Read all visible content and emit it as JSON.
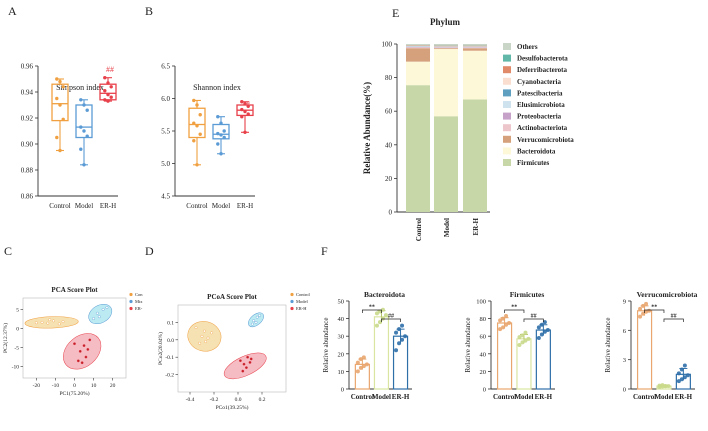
{
  "colors": {
    "control": "#F0A040",
    "model": "#5B9BD5",
    "erh": "#E8404A",
    "pca_control": "#F3D79A",
    "pca_model": "#A6E3EE",
    "pca_erh": "#F2A5B0",
    "bar_control": "#E9A66F",
    "bar_model": "#D9E5A0",
    "bar_erh": "#2F6FA8",
    "axis": "#333333"
  },
  "chart_data": [
    {
      "id": "A",
      "panel_label": "A",
      "type": "box",
      "title": "Simpson index",
      "categories": [
        "Control",
        "Model",
        "ER-H"
      ],
      "ylim": [
        0.86,
        0.96
      ],
      "yticks": [
        "0.96",
        "0.94",
        "0.92",
        "0.90",
        "0.88",
        "0.86"
      ],
      "yticks_values": [
        0.96,
        0.94,
        0.92,
        0.9,
        0.88,
        0.86
      ],
      "boxes": [
        {
          "name": "Control",
          "min": 0.895,
          "q1": 0.918,
          "median": 0.931,
          "q3": 0.946,
          "max": 0.95
        },
        {
          "name": "Model",
          "min": 0.884,
          "q1": 0.905,
          "median": 0.913,
          "q3": 0.93,
          "max": 0.934
        },
        {
          "name": "ER-H",
          "min": 0.933,
          "q1": 0.934,
          "median": 0.939,
          "q3": 0.946,
          "max": 0.951
        }
      ],
      "points": [
        [
          0.95,
          0.948,
          0.944,
          0.935,
          0.93,
          0.919,
          0.905,
          0.895
        ],
        [
          0.934,
          0.93,
          0.926,
          0.913,
          0.91,
          0.906,
          0.896,
          0.884
        ],
        [
          0.951,
          0.947,
          0.944,
          0.941,
          0.938,
          0.936,
          0.934,
          0.933
        ]
      ],
      "annotation": "##"
    },
    {
      "id": "B",
      "panel_label": "B",
      "type": "box",
      "title": "Shannon  index",
      "categories": [
        "Control",
        "Model",
        "ER-H"
      ],
      "ylim": [
        4.5,
        6.5
      ],
      "yticks": [
        "6.5",
        "6.0",
        "5.5",
        "5.0",
        "4.5"
      ],
      "yticks_values": [
        6.5,
        6.0,
        5.5,
        5.0,
        4.5
      ],
      "boxes": [
        {
          "name": "Control",
          "min": 4.98,
          "q1": 5.4,
          "median": 5.6,
          "q3": 5.85,
          "max": 5.97
        },
        {
          "name": "Model",
          "min": 5.15,
          "q1": 5.38,
          "median": 5.45,
          "q3": 5.6,
          "max": 5.72
        },
        {
          "name": "ER-H",
          "min": 5.48,
          "q1": 5.74,
          "median": 5.82,
          "q3": 5.9,
          "max": 5.95
        }
      ],
      "points": [
        [
          5.97,
          5.9,
          5.75,
          5.62,
          5.58,
          5.45,
          5.35,
          4.98
        ],
        [
          5.72,
          5.62,
          5.5,
          5.46,
          5.44,
          5.4,
          5.3,
          5.15
        ],
        [
          5.95,
          5.92,
          5.88,
          5.83,
          5.8,
          5.76,
          5.72,
          5.48
        ]
      ],
      "annotation": "#"
    },
    {
      "id": "C",
      "panel_label": "C",
      "type": "scatter",
      "title": "PCA Score Plot",
      "xlabel": "PC1(75.20%)",
      "ylabel": "PC2(12.37%)",
      "xlim": [
        -27,
        27
      ],
      "ylim": [
        -13,
        8
      ],
      "xticks": [
        "-20",
        "-10",
        "0",
        "10",
        "20"
      ],
      "xticks_values": [
        -20,
        -10,
        0,
        10,
        20
      ],
      "yticks": [
        "5",
        "0",
        "-5",
        "-10"
      ],
      "yticks_values": [
        5,
        0,
        -5,
        -10
      ],
      "legend": [
        "Con",
        "Mix",
        "ER-"
      ],
      "groups": [
        {
          "name": "Con",
          "points": [
            [
              -20,
              1.5
            ],
            [
              -17,
              1.6
            ],
            [
              -14,
              1.4
            ],
            [
              -11,
              2.0
            ],
            [
              -8,
              1.2
            ],
            [
              -6,
              1.8
            ],
            [
              -13,
              2.3
            ]
          ],
          "ellipse": {
            "cx": -12,
            "cy": 1.6,
            "rx": 14,
            "ry": 1.5,
            "angle": 2
          }
        },
        {
          "name": "Mix",
          "points": [
            [
              12,
              4.0
            ],
            [
              15,
              5.0
            ],
            [
              13,
              3.1
            ],
            [
              10,
              2.6
            ],
            [
              17,
              5.5
            ]
          ],
          "ellipse": {
            "cx": 13.5,
            "cy": 3.8,
            "rx": 6.5,
            "ry": 2.3,
            "angle": 30
          }
        },
        {
          "name": "ER-",
          "points": [
            [
              0,
              -4.0
            ],
            [
              3,
              -6.0
            ],
            [
              5,
              -4.5
            ],
            [
              7,
              -5.5
            ],
            [
              6,
              -7.5
            ],
            [
              2,
              -8.5
            ],
            [
              8,
              -3.0
            ],
            [
              4,
              -9.0
            ]
          ],
          "ellipse": {
            "cx": 4,
            "cy": -6,
            "rx": 11,
            "ry": 4,
            "angle": 40
          }
        }
      ]
    },
    {
      "id": "D",
      "panel_label": "D",
      "type": "scatter",
      "title": "PCoA Score Plot",
      "xlabel": "PCo1(39.25%)",
      "ylabel": "PCo2(20.04%)",
      "xlim": [
        -0.5,
        0.4
      ],
      "ylim": [
        -0.3,
        0.2
      ],
      "xticks": [
        "-0.4",
        "-0.2",
        "0.0",
        "0.2"
      ],
      "xticks_values": [
        -0.4,
        -0.2,
        0.0,
        0.2
      ],
      "yticks": [
        "0.1",
        "0.0",
        "-0.1",
        "-0.2"
      ],
      "yticks_values": [
        0.1,
        0.0,
        -0.1,
        -0.2
      ],
      "legend": [
        "Control",
        "Model",
        "ER-H"
      ],
      "groups": [
        {
          "name": "Control",
          "points": [
            [
              -0.35,
              0.07
            ],
            [
              -0.3,
              0.02
            ],
            [
              -0.28,
              0.05
            ],
            [
              -0.25,
              0.01
            ],
            [
              -0.32,
              -0.02
            ],
            [
              -0.22,
              0.04
            ],
            [
              -0.27,
              -0.01
            ]
          ],
          "ellipse": {
            "cx": -0.28,
            "cy": 0.02,
            "rx": 0.14,
            "ry": 0.085,
            "angle": -15
          }
        },
        {
          "name": "Model",
          "points": [
            [
              0.13,
              0.11
            ],
            [
              0.16,
              0.13
            ],
            [
              0.12,
              0.09
            ],
            [
              0.18,
              0.14
            ],
            [
              0.15,
              0.1
            ]
          ],
          "ellipse": {
            "cx": 0.15,
            "cy": 0.115,
            "rx": 0.075,
            "ry": 0.03,
            "angle": 40
          }
        },
        {
          "name": "ER-H",
          "points": [
            [
              0.02,
              -0.12
            ],
            [
              0.05,
              -0.14
            ],
            [
              0.08,
              -0.1
            ],
            [
              0.1,
              -0.13
            ],
            [
              0.04,
              -0.18
            ],
            [
              0.07,
              -0.16
            ],
            [
              0.11,
              -0.11
            ]
          ],
          "ellipse": {
            "cx": 0.06,
            "cy": -0.15,
            "rx": 0.19,
            "ry": 0.055,
            "angle": 25
          }
        }
      ]
    },
    {
      "id": "E",
      "panel_label": "E",
      "type": "stacked_bar",
      "title": "Phylum",
      "ylabel": "Relative Abundance(%)",
      "ylim": [
        0,
        100
      ],
      "yticks": [
        "100",
        "80",
        "60",
        "40",
        "20",
        "0"
      ],
      "yticks_values": [
        100,
        80,
        60,
        40,
        20,
        0
      ],
      "categories": [
        "Control",
        "Model",
        "ER-H"
      ],
      "legend": [
        "Others",
        "Desulfobacterota",
        "Deferribacterota",
        "Cyanobacteria",
        "Patescibacteria",
        "Elusimicrobiota",
        "Proteobacteria",
        "Actinobacteriota",
        "Verrucomicrobiota",
        "Bacteroidota",
        "Firmicutes"
      ],
      "series": [
        {
          "name": "Firmicutes",
          "color": "#C8D7A8",
          "values": [
            75.5,
            57.0,
            67.0
          ]
        },
        {
          "name": "Bacteroidota",
          "color": "#FDF8D8",
          "values": [
            14.0,
            40.0,
            29.0
          ]
        },
        {
          "name": "Verrucomicrobiota",
          "color": "#D4A17C",
          "values": [
            8.0,
            0.5,
            1.5
          ]
        },
        {
          "name": "Actinobacteriota",
          "color": "#EDC6CB",
          "values": [
            0.5,
            0.3,
            0.3
          ]
        },
        {
          "name": "Proteobacteria",
          "color": "#C7A2C8",
          "values": [
            0.3,
            0.3,
            0.3
          ]
        },
        {
          "name": "Elusimicrobiota",
          "color": "#CFE3EE",
          "values": [
            0.2,
            0.1,
            0.1
          ]
        },
        {
          "name": "Patescibacteria",
          "color": "#5F9FC0",
          "values": [
            0.2,
            0.2,
            0.2
          ]
        },
        {
          "name": "Cyanobacteria",
          "color": "#FADFD0",
          "values": [
            0.3,
            0.3,
            0.3
          ]
        },
        {
          "name": "Deferribacterota",
          "color": "#E08A6A",
          "values": [
            0.3,
            0.3,
            0.3
          ]
        },
        {
          "name": "Desulfobacterota",
          "color": "#62B8A8",
          "values": [
            0.2,
            0.2,
            0.2
          ]
        },
        {
          "name": "Others",
          "color": "#C9D5C6",
          "values": [
            0.5,
            0.8,
            0.8
          ]
        }
      ]
    },
    {
      "id": "F1",
      "panel_label": "F",
      "type": "bar",
      "title": "Bacteroidota",
      "ylabel": "Relative abundance",
      "ylim": [
        0,
        50
      ],
      "yticks": [
        "50",
        "40",
        "30",
        "20",
        "10",
        "0"
      ],
      "yticks_values": [
        50,
        40,
        30,
        20,
        10,
        0
      ],
      "categories": [
        "Control",
        "Model",
        "ER-H"
      ],
      "values": [
        14,
        41,
        30
      ],
      "errors": [
        3,
        3.5,
        4
      ],
      "points": [
        [
          10,
          12,
          13,
          14,
          15,
          17,
          18
        ],
        [
          36,
          38,
          40,
          42,
          43,
          44,
          45
        ],
        [
          22,
          26,
          28,
          30,
          32,
          34,
          36
        ]
      ],
      "sig": [
        {
          "from": 0,
          "to": 1,
          "label": "**"
        },
        {
          "from": 1,
          "to": 2,
          "label": "##"
        }
      ]
    },
    {
      "id": "F2",
      "panel_label": "",
      "type": "bar",
      "title": "Firmicutes",
      "ylabel": "Relative abundance",
      "ylim": [
        0,
        100
      ],
      "yticks": [
        "100",
        "80",
        "60",
        "40",
        "20",
        "0"
      ],
      "yticks_values": [
        100,
        80,
        60,
        40,
        20,
        0
      ],
      "categories": [
        "Control",
        "Model",
        "ER-H"
      ],
      "values": [
        75,
        57,
        67
      ],
      "errors": [
        6,
        5,
        6
      ],
      "points": [
        [
          68,
          70,
          73,
          75,
          78,
          80,
          83
        ],
        [
          50,
          53,
          55,
          57,
          59,
          61,
          64
        ],
        [
          58,
          62,
          65,
          67,
          70,
          73,
          76
        ]
      ],
      "sig": [
        {
          "from": 0,
          "to": 1,
          "label": "**"
        },
        {
          "from": 1,
          "to": 2,
          "label": "##"
        }
      ]
    },
    {
      "id": "F3",
      "panel_label": "",
      "type": "bar",
      "title": "Verrucomicrobiota",
      "ylabel": "Relative abundance",
      "ylim": [
        0,
        9
      ],
      "yticks": [
        "9",
        "6",
        "3",
        "0"
      ],
      "yticks_values": [
        9,
        6,
        3,
        0
      ],
      "categories": [
        "Control",
        "Model",
        "ER-H"
      ],
      "values": [
        8.0,
        0.3,
        1.5
      ],
      "errors": [
        0.5,
        0.1,
        0.6
      ],
      "points": [
        [
          7.4,
          7.7,
          7.9,
          8.0,
          8.2,
          8.5,
          8.7
        ],
        [
          0.2,
          0.25,
          0.3,
          0.3,
          0.35,
          0.4,
          0.3
        ],
        [
          0.8,
          1.0,
          1.2,
          1.4,
          1.6,
          2.0,
          2.4
        ]
      ],
      "sig": [
        {
          "from": 0,
          "to": 1,
          "label": "**"
        },
        {
          "from": 1,
          "to": 2,
          "label": "##"
        }
      ]
    }
  ]
}
